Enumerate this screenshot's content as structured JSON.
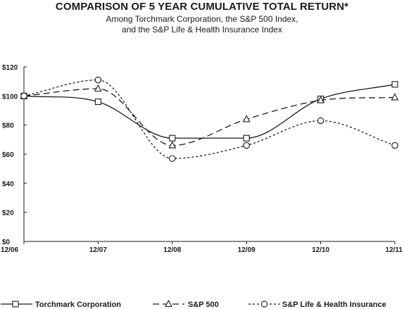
{
  "header": {
    "title": "COMPARISON OF 5 YEAR CUMULATIVE TOTAL RETURN*",
    "subtitle_line1": "Among Torchmark Corporation, the S&P 500 Index,",
    "subtitle_line2": "and the S&P Life & Health Insurance Index"
  },
  "chart_data": {
    "type": "line",
    "title": "COMPARISON OF 5 YEAR CUMULATIVE TOTAL RETURN*",
    "categories": [
      "12/06",
      "12/07",
      "12/08",
      "12/09",
      "12/10",
      "12/11"
    ],
    "yticks": [
      "$0",
      "$20",
      "$40",
      "$60",
      "$80",
      "$100",
      "$120"
    ],
    "ylim": [
      0,
      120
    ],
    "grid": false,
    "legend_position": "bottom",
    "series": [
      {
        "name": "Torchmark Corporation",
        "values": [
          100,
          96,
          71,
          71,
          98,
          108
        ],
        "marker": "square",
        "dash": "solid"
      },
      {
        "name": "S&P 500",
        "values": [
          100,
          105,
          66,
          84,
          97,
          99
        ],
        "marker": "triangle",
        "dash": "long-dash"
      },
      {
        "name": "S&P Life & Health Insurance",
        "values": [
          100,
          111,
          57,
          66,
          83,
          66
        ],
        "marker": "circle",
        "dash": "short-dash"
      }
    ],
    "colors": {
      "line": "#1a1a1a"
    }
  }
}
